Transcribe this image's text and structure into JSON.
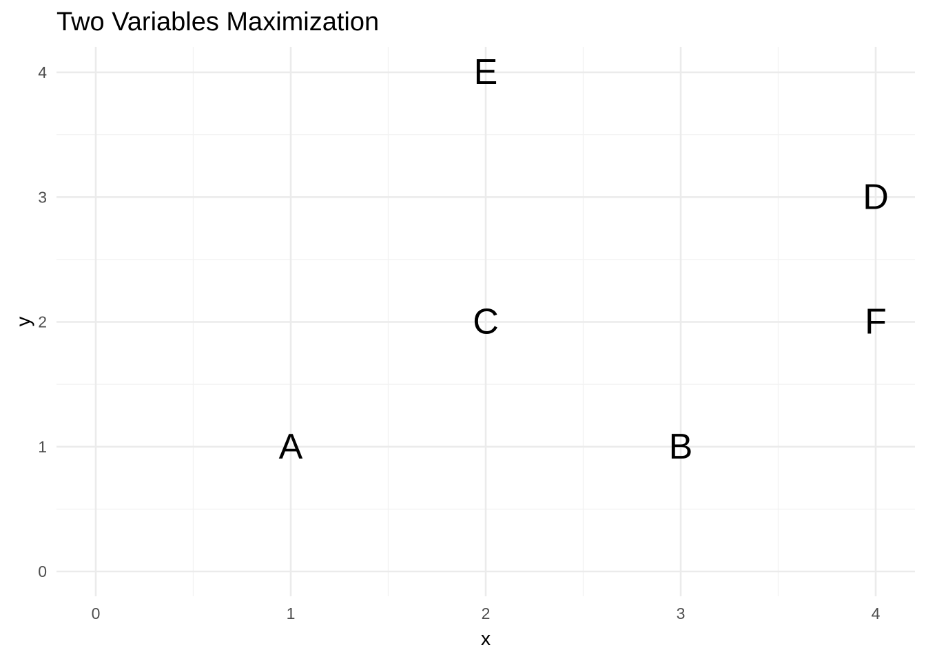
{
  "chart_data": {
    "type": "scatter",
    "title": "Two Variables Maximization",
    "xlabel": "x",
    "ylabel": "y",
    "xlim": [
      0,
      4
    ],
    "ylim": [
      0,
      4
    ],
    "x_ticks": [
      "0",
      "1",
      "2",
      "3",
      "4"
    ],
    "y_ticks": [
      "0",
      "1",
      "2",
      "3",
      "4"
    ],
    "grid": true,
    "marker": "text-label",
    "points": [
      {
        "label": "A",
        "x": 1,
        "y": 1
      },
      {
        "label": "B",
        "x": 3,
        "y": 1
      },
      {
        "label": "C",
        "x": 2,
        "y": 2
      },
      {
        "label": "D",
        "x": 4,
        "y": 3
      },
      {
        "label": "E",
        "x": 2,
        "y": 4
      },
      {
        "label": "F",
        "x": 4,
        "y": 2
      }
    ],
    "colors": {
      "grid_major": "#ebebeb",
      "grid_minor": "#f2f2f2",
      "tick_text": "#4d4d4d",
      "label_text": "#000000"
    }
  }
}
